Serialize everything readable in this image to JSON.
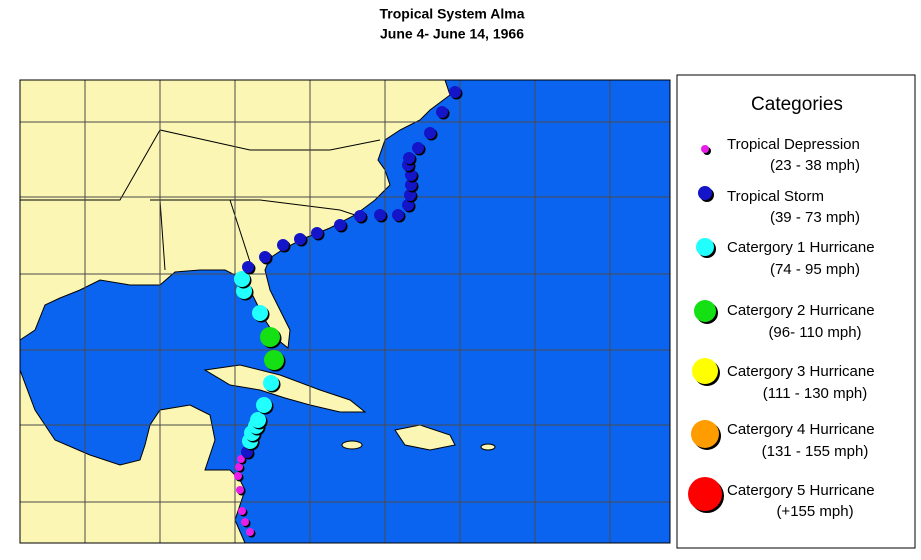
{
  "header": {
    "title": "Tropical System Alma",
    "subtitle": "June 4- June 14, 1966"
  },
  "legend": {
    "title": "Categories",
    "items": [
      {
        "name": "Tropical Depression",
        "range": "(23 - 38 mph)",
        "color": "#e81ee8"
      },
      {
        "name": "Tropical Storm",
        "range": "(39 - 73 mph)",
        "color": "#1414c8"
      },
      {
        "name": "Catergory 1 Hurricane",
        "range": "(74 - 95 mph)",
        "color": "#22ffff"
      },
      {
        "name": "Catergory 2 Hurricane",
        "range": "(96- 110 mph)",
        "color": "#14e014"
      },
      {
        "name": "Catergory 3 Hurricane",
        "range": "(111 - 130 mph)",
        "color": "#ffff00"
      },
      {
        "name": "Catergory 4 Hurricane",
        "range": "(131 - 155 mph)",
        "color": "#ff9c00"
      },
      {
        "name": "Catergory 5 Hurricane",
        "range": "(+155 mph)",
        "color": "#ff0000"
      }
    ]
  }
}
